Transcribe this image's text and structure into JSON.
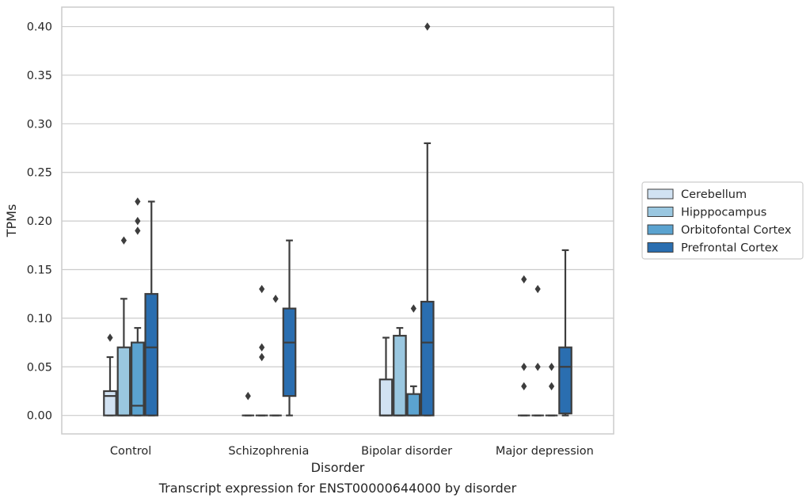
{
  "caption": "Transcript expression for ENST00000644000 by disorder",
  "chart_data": {
    "type": "box",
    "xlabel": "Disorder",
    "ylabel": "TPMs",
    "ylim": [
      -0.019,
      0.42
    ],
    "yticks": [
      "0.00",
      "0.05",
      "0.10",
      "0.15",
      "0.20",
      "0.25",
      "0.30",
      "0.35",
      "0.40"
    ],
    "grid": true,
    "legend_position": "right",
    "categories": [
      "Control",
      "Schizophrenia",
      "Bipolar disorder",
      "Major depression"
    ],
    "series": [
      {
        "name": "Cerebellum",
        "color": "#d1e2f2",
        "boxes": [
          {
            "whislo": 0.0,
            "q1": 0.0,
            "med": 0.02,
            "q3": 0.025,
            "whishi": 0.06,
            "fliers": [
              0.08
            ]
          },
          {
            "whislo": 0.0,
            "q1": 0.0,
            "med": 0.0,
            "q3": 0.0,
            "whishi": 0.0,
            "fliers": [
              0.02
            ]
          },
          {
            "whislo": 0.0,
            "q1": 0.0,
            "med": 0.0,
            "q3": 0.037,
            "whishi": 0.08,
            "fliers": []
          },
          {
            "whislo": 0.0,
            "q1": 0.0,
            "med": 0.0,
            "q3": 0.0,
            "whishi": 0.0,
            "fliers": [
              0.14,
              0.05,
              0.03
            ]
          }
        ]
      },
      {
        "name": "Hipppocampus",
        "color": "#9ac7e0",
        "boxes": [
          {
            "whislo": 0.0,
            "q1": 0.0,
            "med": 0.0,
            "q3": 0.07,
            "whishi": 0.12,
            "fliers": [
              0.18
            ]
          },
          {
            "whislo": 0.0,
            "q1": 0.0,
            "med": 0.0,
            "q3": 0.0,
            "whishi": 0.0,
            "fliers": [
              0.13,
              0.07,
              0.06
            ]
          },
          {
            "whislo": 0.0,
            "q1": 0.0,
            "med": 0.0,
            "q3": 0.082,
            "whishi": 0.09,
            "fliers": []
          },
          {
            "whislo": 0.0,
            "q1": 0.0,
            "med": 0.0,
            "q3": 0.0,
            "whishi": 0.0,
            "fliers": [
              0.13,
              0.05
            ]
          }
        ]
      },
      {
        "name": "Orbitofontal Cortex",
        "color": "#5ba3d0",
        "boxes": [
          {
            "whislo": 0.0,
            "q1": 0.0,
            "med": 0.01,
            "q3": 0.075,
            "whishi": 0.09,
            "fliers": [
              0.22,
              0.2,
              0.19
            ]
          },
          {
            "whislo": 0.0,
            "q1": 0.0,
            "med": 0.0,
            "q3": 0.0,
            "whishi": 0.0,
            "fliers": [
              0.12
            ]
          },
          {
            "whislo": 0.0,
            "q1": 0.0,
            "med": 0.0,
            "q3": 0.022,
            "whishi": 0.03,
            "fliers": [
              0.11
            ]
          },
          {
            "whislo": 0.0,
            "q1": 0.0,
            "med": 0.0,
            "q3": 0.0,
            "whishi": 0.0,
            "fliers": [
              0.05,
              0.03
            ]
          }
        ]
      },
      {
        "name": "Prefrontal Cortex",
        "color": "#2a6eb0",
        "boxes": [
          {
            "whislo": 0.0,
            "q1": 0.0,
            "med": 0.07,
            "q3": 0.125,
            "whishi": 0.22,
            "fliers": []
          },
          {
            "whislo": 0.0,
            "q1": 0.02,
            "med": 0.075,
            "q3": 0.11,
            "whishi": 0.18,
            "fliers": []
          },
          {
            "whislo": 0.0,
            "q1": 0.0,
            "med": 0.075,
            "q3": 0.117,
            "whishi": 0.28,
            "fliers": [
              0.4
            ]
          },
          {
            "whislo": 0.0,
            "q1": 0.002,
            "med": 0.05,
            "q3": 0.07,
            "whishi": 0.17,
            "fliers": []
          }
        ]
      }
    ]
  }
}
